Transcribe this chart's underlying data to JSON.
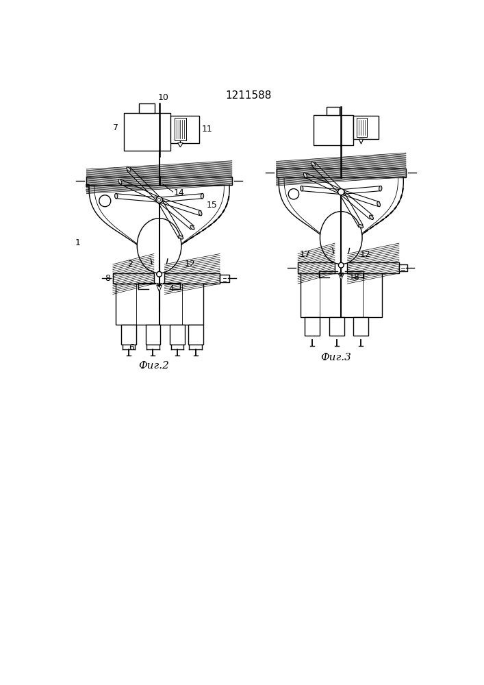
{
  "title": "1211588",
  "title_fontsize": 11,
  "fig2_label": "Фиг.2",
  "fig3_label": "Фиг.3",
  "bg_color": "#ffffff",
  "line_color": "#000000",
  "lw": 1.0,
  "tlw": 0.6
}
